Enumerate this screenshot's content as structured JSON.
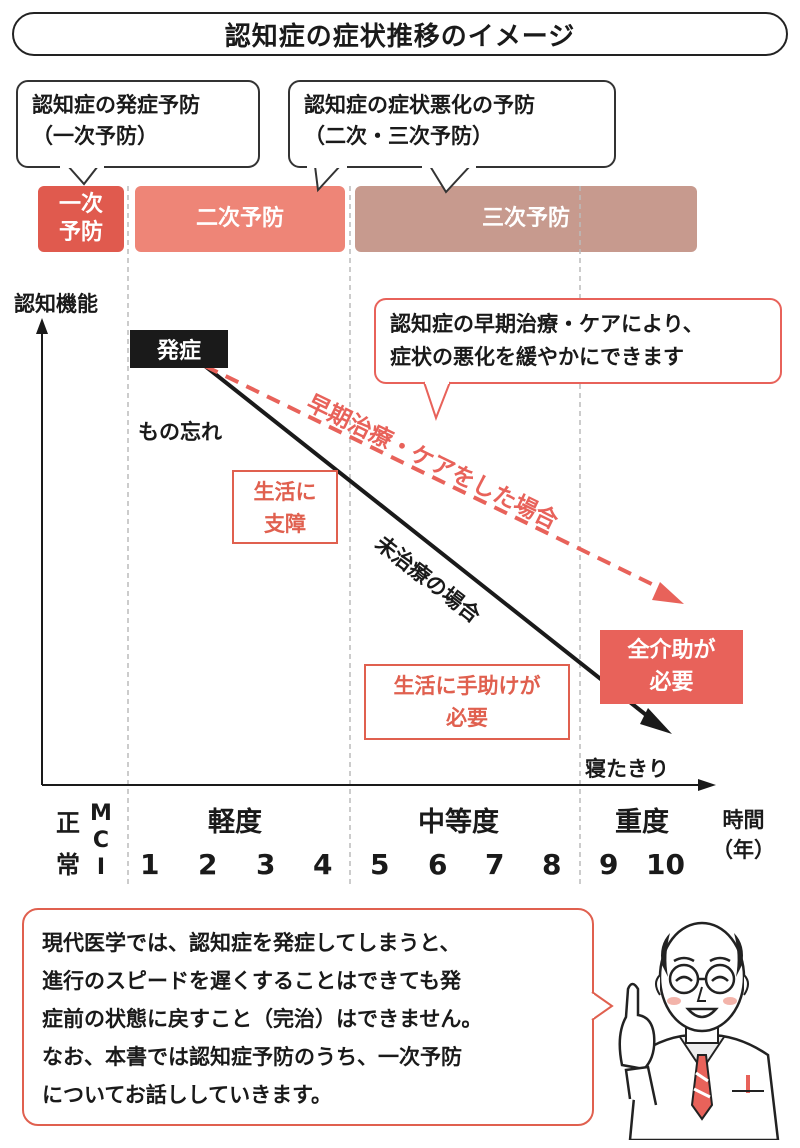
{
  "title": "認知症の症状推移のイメージ",
  "callouts": {
    "primary": [
      "認知症の発症予防",
      "（一次予防）"
    ],
    "secondary": [
      "認知症の症状悪化の予防",
      "（二次・三次予防）"
    ],
    "care": [
      "認知症の早期治療・ケアにより、",
      "症状の悪化を緩やかにできます"
    ]
  },
  "stages": {
    "primary": [
      "一次",
      "予防"
    ],
    "secondary": "二次予防",
    "tertiary": "三次予防"
  },
  "axis": {
    "y_label": "認知機能",
    "x_label": [
      "時間",
      "（年）"
    ],
    "normal": [
      "正",
      "常"
    ],
    "mci": [
      "M",
      "C",
      "I"
    ],
    "ticks": [
      "1",
      "2",
      "3",
      "4",
      "5",
      "6",
      "7",
      "8",
      "9",
      "10"
    ]
  },
  "severity": {
    "mild": "軽度",
    "moderate": "中等度",
    "severe": "重度"
  },
  "labels": {
    "onset": "発症",
    "forgetfulness": "もの忘れ",
    "life_support": [
      "生活に",
      "支障"
    ],
    "untreated": "未治療の場合",
    "treated": "早期治療・ケアをした場合",
    "need_help": [
      "生活に手助けが",
      "必要"
    ],
    "full_care": [
      "全介助が",
      "必要"
    ],
    "bedridden": "寝たきり"
  },
  "bottom_text": [
    "現代医学では、認知症を発症してしまうと、",
    "進行のスピードを遅くすることはできても発",
    "症前の状態に戻すこと（完治）はできません。",
    "なお、本書では認知症予防のうち、一次予防",
    "についてお話ししていきます。"
  ],
  "colors": {
    "accent": "#e8625a",
    "stage_primary": "#e05a4e",
    "stage_secondary": "#ee8577",
    "stage_tertiary": "#c79a8e",
    "text": "#1a1a1a"
  }
}
